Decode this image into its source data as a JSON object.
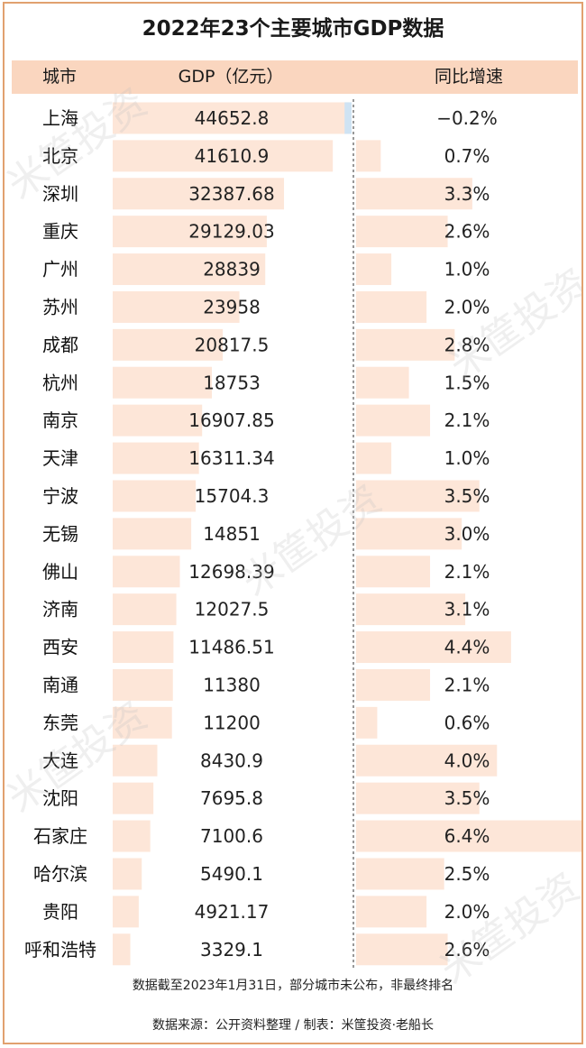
{
  "title": "2022年23个主要城市GDP数据",
  "headers": {
    "city": "城市",
    "gdp": "GDP（亿元）",
    "growth": "同比增速"
  },
  "colors": {
    "bar": "#fde6d8",
    "header": "#fad6bf",
    "border": "#e1a16f",
    "negative_bar": "#cfe3f3"
  },
  "chart_data": {
    "type": "table",
    "title": "2022年23个主要城市GDP数据",
    "columns": [
      "城市",
      "GDP（亿元）",
      "同比增速"
    ],
    "categories": [
      "上海",
      "北京",
      "深圳",
      "重庆",
      "广州",
      "苏州",
      "成都",
      "杭州",
      "南京",
      "天津",
      "宁波",
      "无锡",
      "佛山",
      "济南",
      "西安",
      "南通",
      "东莞",
      "大连",
      "沈阳",
      "石家庄",
      "哈尔滨",
      "贵阳",
      "呼和浩特"
    ],
    "series": [
      {
        "name": "GDP（亿元）",
        "values": [
          44652.8,
          41610.9,
          32387.68,
          29129.03,
          28839,
          23958,
          20817.5,
          18753,
          16907.85,
          16311.34,
          15704.3,
          14851,
          12698.39,
          12027.5,
          11486.51,
          11380,
          11200,
          8430.9,
          7695.8,
          7100.6,
          5490.1,
          4921.17,
          3329.1
        ]
      },
      {
        "name": "同比增速",
        "values": [
          -0.2,
          0.7,
          3.3,
          2.6,
          1.0,
          2.0,
          2.8,
          1.5,
          2.1,
          1.0,
          3.5,
          3.0,
          2.1,
          3.1,
          4.4,
          2.1,
          0.6,
          4.0,
          3.5,
          6.4,
          2.5,
          2.0,
          2.6
        ]
      }
    ],
    "gdp_labels": [
      "44652.8",
      "41610.9",
      "32387.68",
      "29129.03",
      "28839",
      "23958",
      "20817.5",
      "18753",
      "16907.85",
      "16311.34",
      "15704.3",
      "14851",
      "12698.39",
      "12027.5",
      "11486.51",
      "11380",
      "11200",
      "8430.9",
      "7695.8",
      "7100.6",
      "5490.1",
      "4921.17",
      "3329.1"
    ],
    "growth_labels": [
      "−0.2%",
      "0.7%",
      "3.3%",
      "2.6%",
      "1.0%",
      "2.0%",
      "2.8%",
      "1.5%",
      "2.1%",
      "1.0%",
      "3.5%",
      "3.0%",
      "2.1%",
      "3.1%",
      "4.4%",
      "2.1%",
      "0.6%",
      "4.0%",
      "3.5%",
      "6.4%",
      "2.5%",
      "2.0%",
      "2.6%"
    ]
  },
  "footnote": "数据截至2023年1月31日，部分城市未公布，非最终排名",
  "source": "数据来源：公开资料整理 / 制表：米筐投资·老船长",
  "watermark": "米筐投资"
}
